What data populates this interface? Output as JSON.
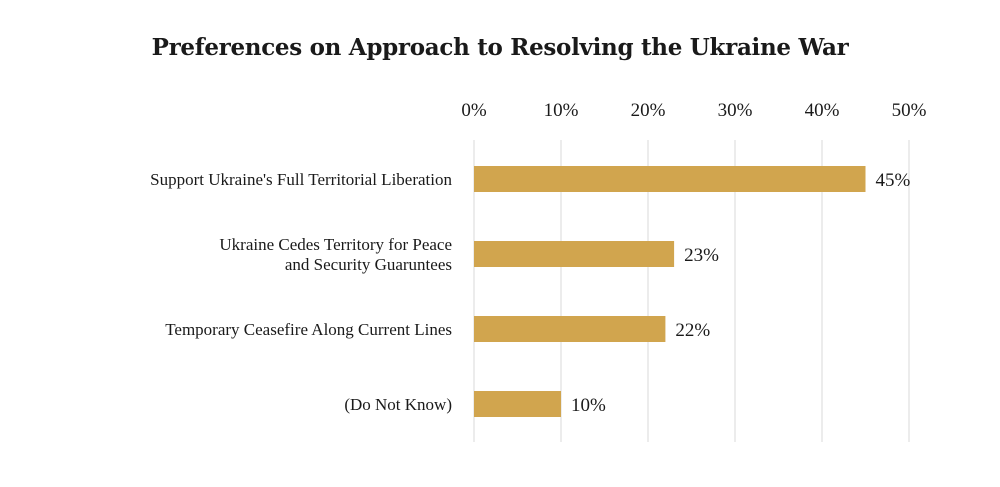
{
  "chart_data": {
    "type": "bar",
    "orientation": "horizontal",
    "title": "Preferences on Approach to Resolving the Ukraine War",
    "xlabel": "",
    "ylabel": "",
    "xlim": [
      0,
      50
    ],
    "x_ticks": [
      "0%",
      "10%",
      "20%",
      "30%",
      "40%",
      "50%"
    ],
    "x_tick_values": [
      0,
      10,
      20,
      30,
      40,
      50
    ],
    "x_axis_position": "top",
    "grid": true,
    "categories": [
      [
        "Support Ukraine's Full Territorial Liberation"
      ],
      [
        "Ukraine Cedes Territory for Peace",
        "and Security Guaruntees"
      ],
      [
        "Temporary Ceasefire Along Current Lines"
      ],
      [
        "(Do Not Know)"
      ]
    ],
    "values": [
      45,
      23,
      22,
      10
    ],
    "data_labels": [
      "45%",
      "23%",
      "22%",
      "10%"
    ],
    "bar_color": "#D1A54E",
    "grid_color": "#d9d9d9"
  }
}
